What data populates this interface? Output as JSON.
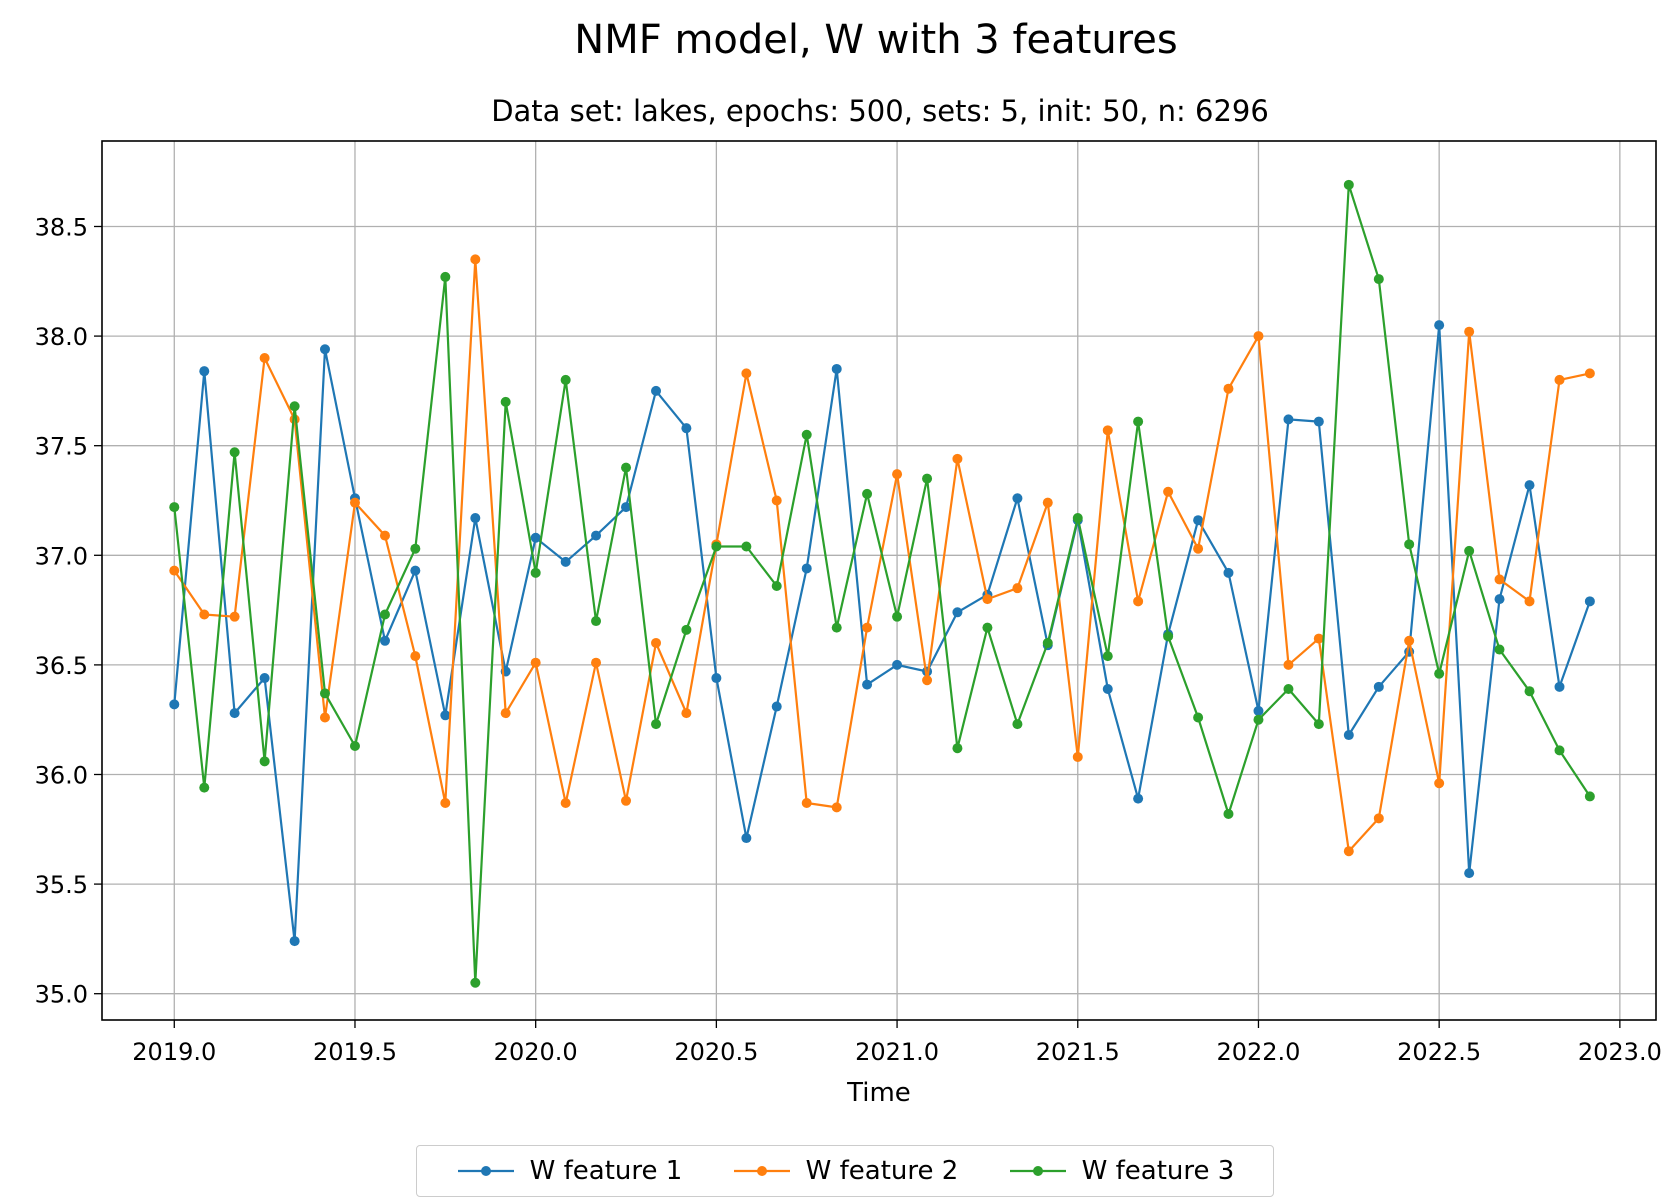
{
  "chart_data": {
    "type": "line",
    "title": "NMF model, W with 3 features",
    "subtitle": "Data set: lakes, epochs: 500, sets: 5, init: 50, n: 6296",
    "xlabel": "Time",
    "ylabel": "",
    "xlim": [
      2018.8,
      2023.1
    ],
    "ylim": [
      34.88,
      38.89
    ],
    "grid": true,
    "legend_position": "bottom-center",
    "x_ticks": [
      "2019.0",
      "2019.5",
      "2020.0",
      "2020.5",
      "2021.0",
      "2021.5",
      "2022.0",
      "2022.5",
      "2023.0"
    ],
    "y_ticks": [
      "35.0",
      "35.5",
      "36.0",
      "36.5",
      "37.0",
      "37.5",
      "38.0",
      "38.5"
    ],
    "x_tick_values": [
      2019.0,
      2019.5,
      2020.0,
      2020.5,
      2021.0,
      2021.5,
      2022.0,
      2022.5,
      2023.0
    ],
    "y_tick_values": [
      35.0,
      35.5,
      36.0,
      36.5,
      37.0,
      37.5,
      38.0,
      38.5
    ],
    "x": [
      2019.0,
      2019.083,
      2019.167,
      2019.25,
      2019.333,
      2019.417,
      2019.5,
      2019.583,
      2019.667,
      2019.75,
      2019.833,
      2019.917,
      2020.0,
      2020.083,
      2020.167,
      2020.25,
      2020.333,
      2020.417,
      2020.5,
      2020.583,
      2020.667,
      2020.75,
      2020.833,
      2020.917,
      2021.0,
      2021.083,
      2021.167,
      2021.25,
      2021.333,
      2021.417,
      2021.5,
      2021.583,
      2021.667,
      2021.75,
      2021.833,
      2021.917,
      2022.0,
      2022.083,
      2022.167,
      2022.25,
      2022.333,
      2022.417,
      2022.5,
      2022.583,
      2022.667,
      2022.75,
      2022.833,
      2022.917
    ],
    "series": [
      {
        "name": "W feature 1",
        "color": "#1f77b4",
        "values": [
          36.32,
          37.84,
          36.28,
          36.44,
          35.24,
          37.94,
          37.26,
          36.61,
          36.93,
          36.27,
          37.17,
          36.47,
          37.08,
          36.97,
          37.09,
          37.22,
          37.75,
          37.58,
          36.44,
          35.71,
          36.31,
          36.94,
          37.85,
          36.41,
          36.5,
          36.47,
          36.74,
          36.82,
          37.26,
          36.59,
          37.16,
          36.39,
          35.89,
          36.64,
          37.16,
          36.92,
          36.29,
          37.62,
          37.61,
          36.18,
          36.4,
          36.56,
          38.05,
          35.55,
          36.8,
          37.32,
          36.4,
          36.79
        ]
      },
      {
        "name": "W feature 2",
        "color": "#ff7f0e",
        "values": [
          36.93,
          36.73,
          36.72,
          37.9,
          37.62,
          36.26,
          37.24,
          37.09,
          36.54,
          35.87,
          38.35,
          36.28,
          36.51,
          35.87,
          36.51,
          35.88,
          36.6,
          36.28,
          37.05,
          37.83,
          37.25,
          35.87,
          35.85,
          36.67,
          37.37,
          36.43,
          37.44,
          36.8,
          36.85,
          37.24,
          36.08,
          37.57,
          36.79,
          37.29,
          37.03,
          37.76,
          38.0,
          36.5,
          36.62,
          35.65,
          35.8,
          36.61,
          35.96,
          38.02,
          36.89,
          36.79,
          37.8,
          37.83
        ]
      },
      {
        "name": "W feature 3",
        "color": "#2ca02c",
        "values": [
          37.22,
          35.94,
          37.47,
          36.06,
          37.68,
          36.37,
          36.13,
          36.73,
          37.03,
          38.27,
          35.05,
          37.7,
          36.92,
          37.8,
          36.7,
          37.4,
          36.23,
          36.66,
          37.04,
          37.04,
          36.86,
          37.55,
          36.67,
          37.28,
          36.72,
          37.35,
          36.12,
          36.67,
          36.23,
          36.6,
          37.17,
          36.54,
          37.61,
          36.63,
          36.26,
          35.82,
          36.25,
          36.39,
          36.23,
          38.69,
          38.26,
          37.05,
          36.46,
          37.02,
          36.57,
          36.38,
          36.11,
          35.9
        ]
      }
    ]
  }
}
